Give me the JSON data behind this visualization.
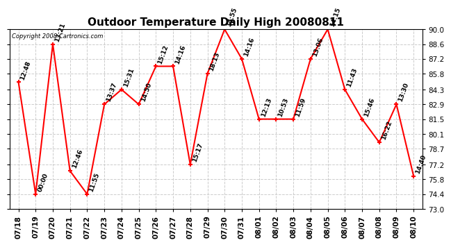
{
  "title": "Outdoor Temperature Daily High 20080811",
  "copyright": "Copyright 2008 Cartronics.com",
  "dates": [
    "07/18",
    "07/19",
    "07/20",
    "07/21",
    "07/22",
    "07/23",
    "07/24",
    "07/25",
    "07/26",
    "07/27",
    "07/28",
    "07/29",
    "07/30",
    "07/31",
    "08/01",
    "08/02",
    "08/03",
    "08/04",
    "08/05",
    "08/06",
    "08/07",
    "08/08",
    "08/09",
    "08/10"
  ],
  "temps": [
    85.0,
    74.4,
    88.6,
    76.6,
    74.4,
    82.9,
    84.3,
    82.9,
    86.5,
    86.5,
    77.2,
    85.8,
    90.0,
    87.2,
    81.5,
    81.5,
    81.5,
    87.2,
    90.0,
    84.3,
    81.5,
    79.3,
    82.9,
    76.1
  ],
  "labels": [
    "12:48",
    "00:00",
    "13:21",
    "12:46",
    "11:55",
    "13:37",
    "15:31",
    "14:50",
    "15:12",
    "14:16",
    "15:17",
    "18:13",
    "14:55",
    "14:16",
    "12:13",
    "10:53",
    "11:59",
    "13:06",
    "14:15",
    "11:43",
    "15:46",
    "16:22",
    "13:30",
    "14:40"
  ],
  "ylim": [
    73.0,
    90.0
  ],
  "yticks": [
    73.0,
    74.4,
    75.8,
    77.2,
    78.7,
    80.1,
    81.5,
    82.9,
    84.3,
    85.8,
    87.2,
    88.6,
    90.0
  ],
  "line_color": "red",
  "marker_color": "red",
  "bg_color": "#ffffff",
  "grid_color": "#cccccc",
  "title_fontsize": 11,
  "label_fontsize": 6.5,
  "tick_fontsize": 7.5
}
